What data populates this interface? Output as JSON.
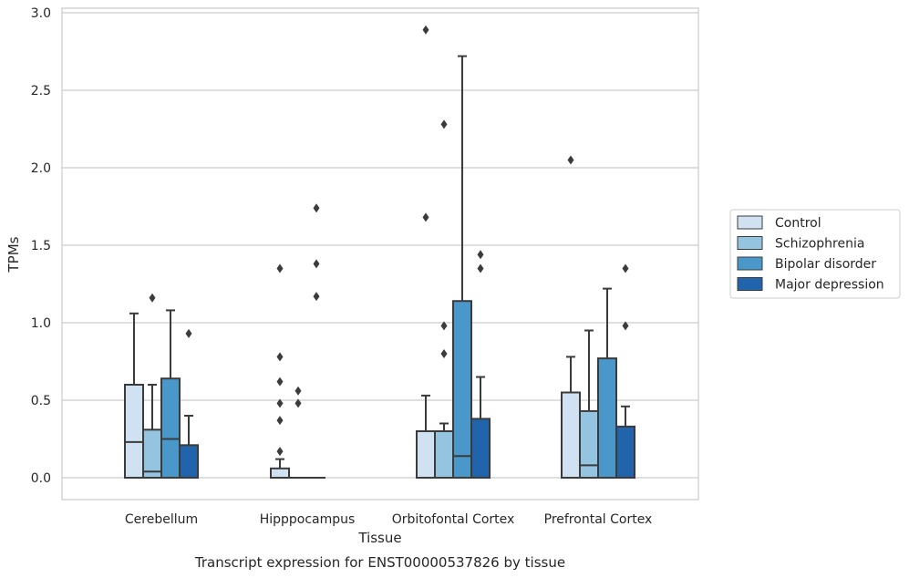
{
  "chart_data": {
    "type": "box",
    "xlabel": "Tissue",
    "ylabel": "TPMs",
    "caption": "Transcript expression for ENST00000537826 by tissue",
    "ylim": [
      -0.14,
      3.05
    ],
    "yticks": [
      0.0,
      0.5,
      1.0,
      1.5,
      2.0,
      2.5,
      3.0
    ],
    "ytick_labels": [
      "0.0",
      "0.5",
      "1.0",
      "1.5",
      "2.0",
      "2.5",
      "3.0"
    ],
    "grid": "horizontal",
    "legend_position": "right",
    "categories": [
      "Cerebellum",
      "Hipppocampus",
      "Orbitofontal Cortex",
      "Prefrontal Cortex"
    ],
    "series": [
      {
        "name": "Control",
        "color": "#d0e1f2",
        "boxes": [
          {
            "q1": 0.0,
            "median": 0.23,
            "q3": 0.6,
            "whisker_low": 0.0,
            "whisker_high": 1.06,
            "outliers": []
          },
          {
            "q1": 0.0,
            "median": 0.0,
            "q3": 0.06,
            "whisker_low": 0.0,
            "whisker_high": 0.12,
            "outliers": [
              0.17,
              0.37,
              0.48,
              0.62,
              0.78,
              1.35
            ]
          },
          {
            "q1": 0.0,
            "median": 0.0,
            "q3": 0.3,
            "whisker_low": 0.0,
            "whisker_high": 0.53,
            "outliers": [
              1.68,
              2.89
            ]
          },
          {
            "q1": 0.0,
            "median": 0.0,
            "q3": 0.55,
            "whisker_low": 0.0,
            "whisker_high": 0.78,
            "outliers": [
              2.05
            ]
          }
        ]
      },
      {
        "name": "Schizophrenia",
        "color": "#94c4df",
        "boxes": [
          {
            "q1": 0.0,
            "median": 0.04,
            "q3": 0.31,
            "whisker_low": 0.0,
            "whisker_high": 0.6,
            "outliers": [
              1.16
            ]
          },
          {
            "q1": 0.0,
            "median": 0.0,
            "q3": 0.0,
            "whisker_low": 0.0,
            "whisker_high": 0.0,
            "outliers": [
              0.48,
              0.56
            ]
          },
          {
            "q1": 0.0,
            "median": 0.0,
            "q3": 0.3,
            "whisker_low": 0.0,
            "whisker_high": 0.35,
            "outliers": [
              0.8,
              0.98,
              2.28
            ]
          },
          {
            "q1": 0.0,
            "median": 0.08,
            "q3": 0.43,
            "whisker_low": 0.0,
            "whisker_high": 0.95,
            "outliers": []
          }
        ]
      },
      {
        "name": "Bipolar disorder",
        "color": "#4a98c9",
        "boxes": [
          {
            "q1": 0.0,
            "median": 0.25,
            "q3": 0.64,
            "whisker_low": 0.0,
            "whisker_high": 1.08,
            "outliers": []
          },
          {
            "q1": 0.0,
            "median": 0.0,
            "q3": 0.0,
            "whisker_low": 0.0,
            "whisker_high": 0.0,
            "outliers": [
              1.17,
              1.38,
              1.74
            ]
          },
          {
            "q1": 0.0,
            "median": 0.14,
            "q3": 1.14,
            "whisker_low": 0.0,
            "whisker_high": 2.72,
            "outliers": []
          },
          {
            "q1": 0.0,
            "median": 0.0,
            "q3": 0.77,
            "whisker_low": 0.0,
            "whisker_high": 1.22,
            "outliers": []
          }
        ]
      },
      {
        "name": "Major depression",
        "color": "#2164ab",
        "boxes": [
          {
            "q1": 0.0,
            "median": 0.0,
            "q3": 0.21,
            "whisker_low": 0.0,
            "whisker_high": 0.4,
            "outliers": [
              0.93
            ]
          },
          null,
          {
            "q1": 0.0,
            "median": 0.0,
            "q3": 0.38,
            "whisker_low": 0.0,
            "whisker_high": 0.65,
            "outliers": [
              1.35,
              1.44
            ]
          },
          {
            "q1": 0.0,
            "median": 0.0,
            "q3": 0.33,
            "whisker_low": 0.0,
            "whisker_high": 0.46,
            "outliers": [
              0.98,
              1.35
            ]
          }
        ]
      }
    ]
  }
}
